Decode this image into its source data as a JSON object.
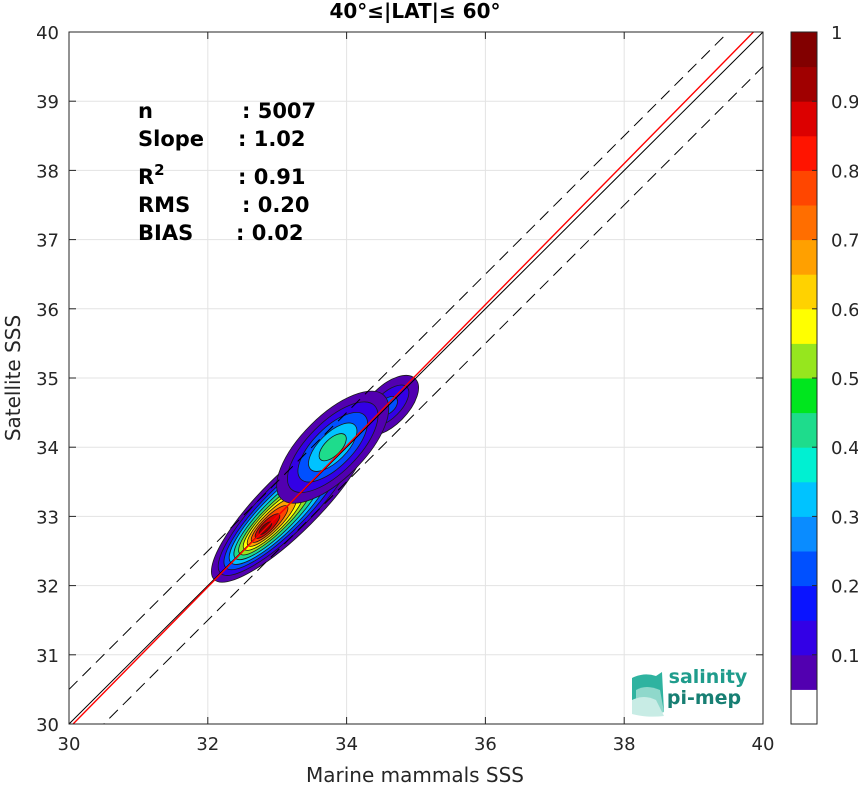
{
  "chart_data": {
    "type": "contour-density-scatter",
    "title": "40°≤|LAT|≤ 60°",
    "xlabel": "Marine mammals SSS",
    "ylabel": "Satellite SSS",
    "xlim": [
      30,
      40
    ],
    "ylim": [
      30,
      40
    ],
    "xticks": [
      30,
      32,
      34,
      36,
      38,
      40
    ],
    "yticks": [
      30,
      31,
      32,
      33,
      34,
      35,
      36,
      37,
      38,
      39,
      40
    ],
    "grid": true,
    "stats": [
      {
        "label": "n",
        "sep": ": ",
        "value": "5007"
      },
      {
        "label": "Slope",
        "sep": ": ",
        "value": "1.02"
      },
      {
        "label": "R",
        "sup": "2",
        "sep": ": ",
        "value": "0.91"
      },
      {
        "label": "RMS",
        "sep": ": ",
        "value": "0.20"
      },
      {
        "label": "BIAS",
        "sep": ": ",
        "value": "0.02"
      }
    ],
    "reference_lines": {
      "identity": {
        "slope": 1,
        "intercept": 0,
        "color": "#000000"
      },
      "fit": {
        "slope": 1.02,
        "intercept": -0.66,
        "color": "#ff0000"
      },
      "bounds": {
        "offset": 0.5,
        "color": "#000000",
        "style": "dashed"
      }
    },
    "density_peaks": [
      {
        "x": 32.8,
        "y": 32.8,
        "value": 1.0
      },
      {
        "x": 33.8,
        "y": 34.0,
        "value": 0.45
      },
      {
        "x": 34.6,
        "y": 34.6,
        "value": 0.2
      }
    ],
    "colorbar": {
      "ticks": [
        "0.1",
        "0.2",
        "0.3",
        "0.4",
        "0.5",
        "0.6",
        "0.7",
        "0.8",
        "0.9",
        "1"
      ],
      "colors": [
        "#ffffff",
        "#5200b0",
        "#3300e6",
        "#0a14ff",
        "#0050ff",
        "#0a8cff",
        "#00c3ff",
        "#00f0d2",
        "#1edc8c",
        "#00e61e",
        "#96e61e",
        "#ffff00",
        "#ffd200",
        "#ffa000",
        "#ff6e00",
        "#ff4600",
        "#ff1400",
        "#dc0000",
        "#a00000",
        "#820000"
      ],
      "range": [
        0,
        1
      ]
    },
    "logo": {
      "line1": "salinity",
      "line2": "pi-mep"
    }
  }
}
